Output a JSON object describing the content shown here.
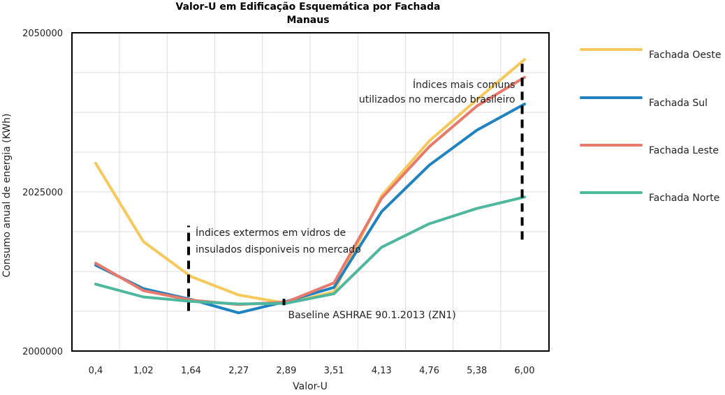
{
  "chart_data": {
    "type": "line",
    "title": "Valor-U  em Edificação Esquemática por Fachada",
    "subtitle": "Manaus",
    "xlabel": "Valor-U",
    "ylabel": "Consumo anual de energia (KWh)",
    "categories": [
      "0,4",
      "1,02",
      "1,64",
      "2,27",
      "2,89",
      "3,51",
      "4,13",
      "4,76",
      "5,38",
      "6,00"
    ],
    "ylim": [
      2000000,
      2050000
    ],
    "y_ticks": [
      "2000000",
      "2025000",
      "2050000"
    ],
    "grid": true,
    "legend_position": "right",
    "series": [
      {
        "name": "Fachada Oeste",
        "color": "#F7C95C",
        "values": [
          2029500,
          2017200,
          2011700,
          2008800,
          2007500,
          2009300,
          2024400,
          2033000,
          2039500,
          2045800
        ]
      },
      {
        "name": "Fachada Sul",
        "color": "#1F82C1",
        "values": [
          2013500,
          2009800,
          2008100,
          2006000,
          2007800,
          2010000,
          2021900,
          2029200,
          2034700,
          2038800
        ]
      },
      {
        "name": "Fachada Leste",
        "color": "#E8796B",
        "values": [
          2013800,
          2009500,
          2008000,
          2007300,
          2007700,
          2010700,
          2024000,
          2032100,
          2038500,
          2043000
        ]
      },
      {
        "name": "Fachada Norte",
        "color": "#4DB89E",
        "values": [
          2010500,
          2008500,
          2007800,
          2007400,
          2007500,
          2009000,
          2016300,
          2020000,
          2022400,
          2024200
        ]
      }
    ],
    "markers": [
      {
        "x_index": 1.95,
        "y_range": [
          2006300,
          2019700
        ],
        "style": "dashed",
        "label": "Índices extermos em vidros de\ninsulados disponiveis no mercado"
      },
      {
        "x_index": 3.95,
        "y_range": [
          2007200,
          2008200
        ],
        "style": "solid",
        "label": "Baseline ASHRAE 90.1.2013 (ZN1)"
      },
      {
        "x_index": 8.95,
        "y_range": [
          2017500,
          2045200
        ],
        "style": "dashed",
        "label": "Índices mais comuns\nutilizados no mercado brasileiro"
      }
    ]
  }
}
